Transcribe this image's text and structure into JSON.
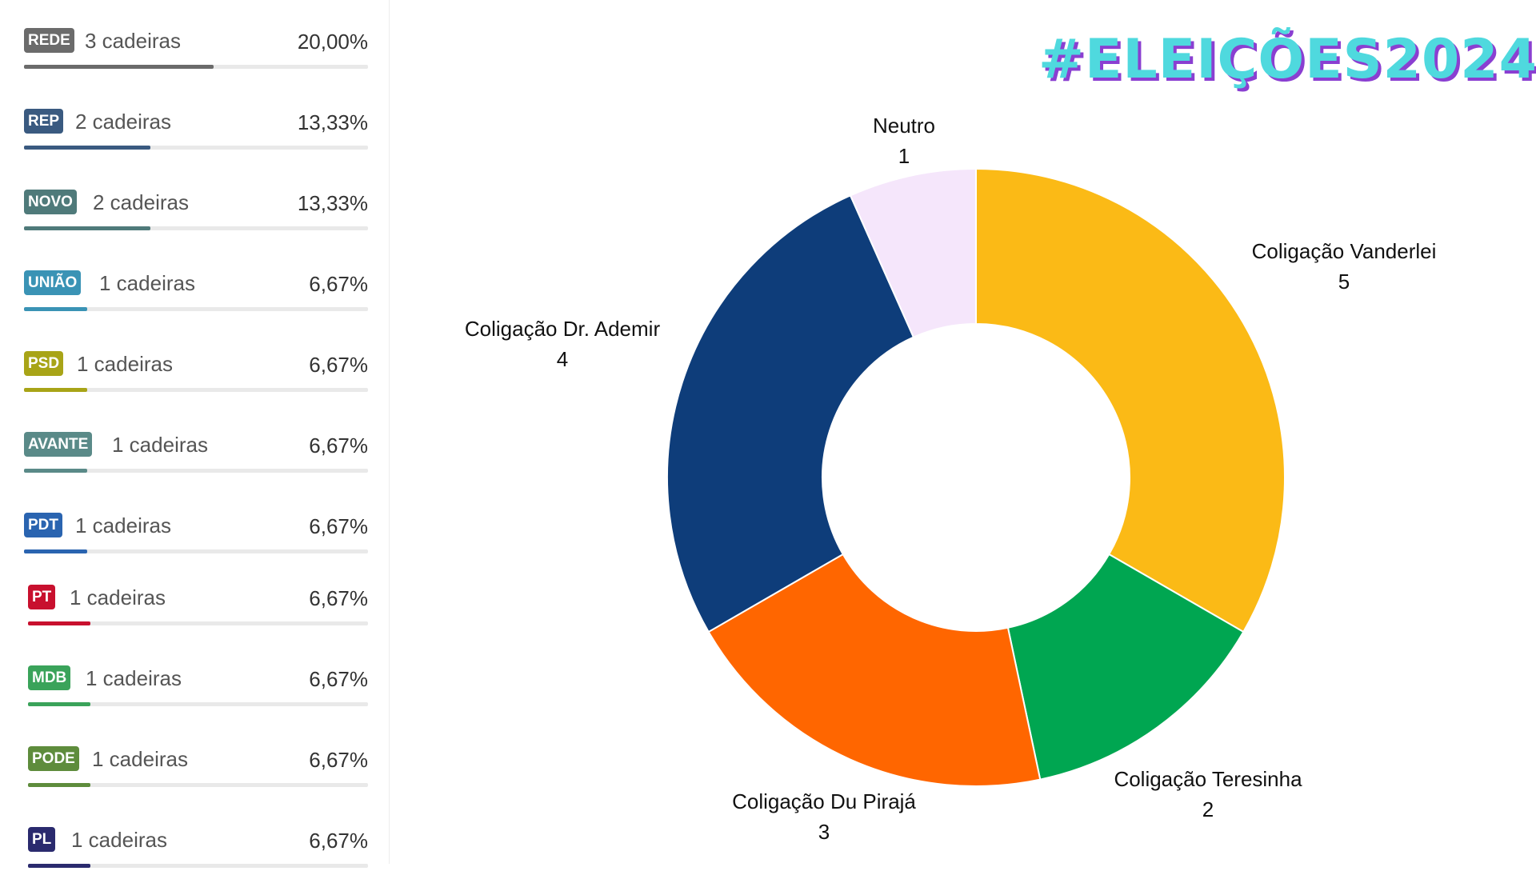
{
  "hashtag": "#ELEIÇÕES2024",
  "parties": [
    {
      "abbr": "REDE",
      "seats_label": "3 cadeiras",
      "percent_label": "20,00%",
      "percent": 20.0,
      "color": "#6b6b6b"
    },
    {
      "abbr": "REP",
      "seats_label": "2 cadeiras",
      "percent_label": "13,33%",
      "percent": 13.33,
      "color": "#3a5a80"
    },
    {
      "abbr": "NOVO",
      "seats_label": "2 cadeiras",
      "percent_label": "13,33%",
      "percent": 13.33,
      "color": "#4f7a7a"
    },
    {
      "abbr": "UNIÃO",
      "seats_label": "1 cadeiras",
      "percent_label": "6,67%",
      "percent": 6.67,
      "color": "#3a93b5"
    },
    {
      "abbr": "PSD",
      "seats_label": "1 cadeiras",
      "percent_label": "6,67%",
      "percent": 6.67,
      "color": "#a8a417"
    },
    {
      "abbr": "AVANTE",
      "seats_label": "1 cadeiras",
      "percent_label": "6,67%",
      "percent": 6.67,
      "color": "#5a8a88"
    },
    {
      "abbr": "PDT",
      "seats_label": "1 cadeiras",
      "percent_label": "6,67%",
      "percent": 6.67,
      "color": "#2a64b0"
    },
    {
      "abbr": "PT",
      "seats_label": "1 cadeiras",
      "percent_label": "6,67%",
      "percent": 6.67,
      "color": "#c8102e"
    },
    {
      "abbr": "MDB",
      "seats_label": "1 cadeiras",
      "percent_label": "6,67%",
      "percent": 6.67,
      "color": "#3aa35a"
    },
    {
      "abbr": "PODE",
      "seats_label": "1 cadeiras",
      "percent_label": "6,67%",
      "percent": 6.67,
      "color": "#5e8c3c"
    },
    {
      "abbr": "PL",
      "seats_label": "1 cadeiras",
      "percent_label": "6,67%",
      "percent": 6.67,
      "color": "#2a2a6e"
    }
  ],
  "chart_data": {
    "type": "pie",
    "donut": true,
    "title": "",
    "slices": [
      {
        "label": "Coligação Vanderlei",
        "value": 5,
        "color": "#fbba16"
      },
      {
        "label": "Coligação Teresinha",
        "value": 2,
        "color": "#00a651"
      },
      {
        "label": "Coligação Du Pirajá",
        "value": 3,
        "color": "#ff6600"
      },
      {
        "label": "Coligação Dr. Ademir",
        "value": 4,
        "color": "#0e3d7a"
      },
      {
        "label": "Neutro",
        "value": 1,
        "color": "#f5e6fb"
      }
    ]
  }
}
